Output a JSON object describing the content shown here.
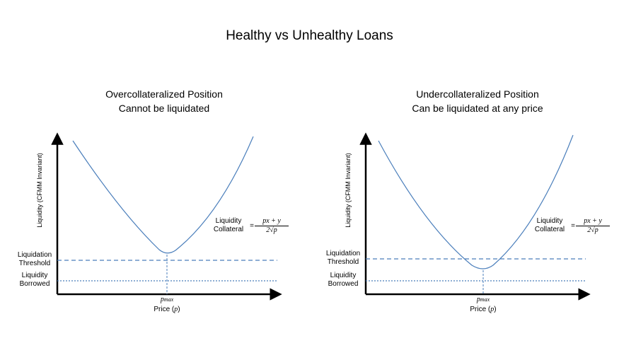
{
  "title": "Healthy vs Unhealthy Loans",
  "left": {
    "title_line1": "Overcollateralized Position",
    "title_line2": "Cannot be liquidated",
    "y_axis": "Liquidity (CFMM Invariant)",
    "x_axis_prefix": "Price (",
    "x_axis_var": "p",
    "x_axis_suffix": ")",
    "pmax_label": "p",
    "pmax_sub": "max",
    "threshold_line1": "Liquidation",
    "threshold_line2": "Threshold",
    "borrowed_line1": "Liquidity",
    "borrowed_line2": "Borrowed",
    "collateral_line1": "Liquidity",
    "collateral_line2": "Collateral",
    "eq_sign": "=",
    "numerator": "px + y",
    "denominator": "2√p"
  },
  "right": {
    "title_line1": "Undercollateralized Position",
    "title_line2": "Can be liquidated at any price",
    "y_axis": "Liquidity (CFMM Invariant)",
    "x_axis_prefix": "Price (",
    "x_axis_var": "p",
    "x_axis_suffix": ")",
    "pmax_label": "p",
    "pmax_sub": "max",
    "threshold_line1": "Liquidation",
    "threshold_line2": "Threshold",
    "borrowed_line1": "Liquidity",
    "borrowed_line2": "Borrowed",
    "collateral_line1": "Liquidity",
    "collateral_line2": "Collateral",
    "eq_sign": "=",
    "numerator": "px + y",
    "denominator": "2√p"
  },
  "colors": {
    "curve": "#4a7ebb",
    "axis": "#000000"
  }
}
